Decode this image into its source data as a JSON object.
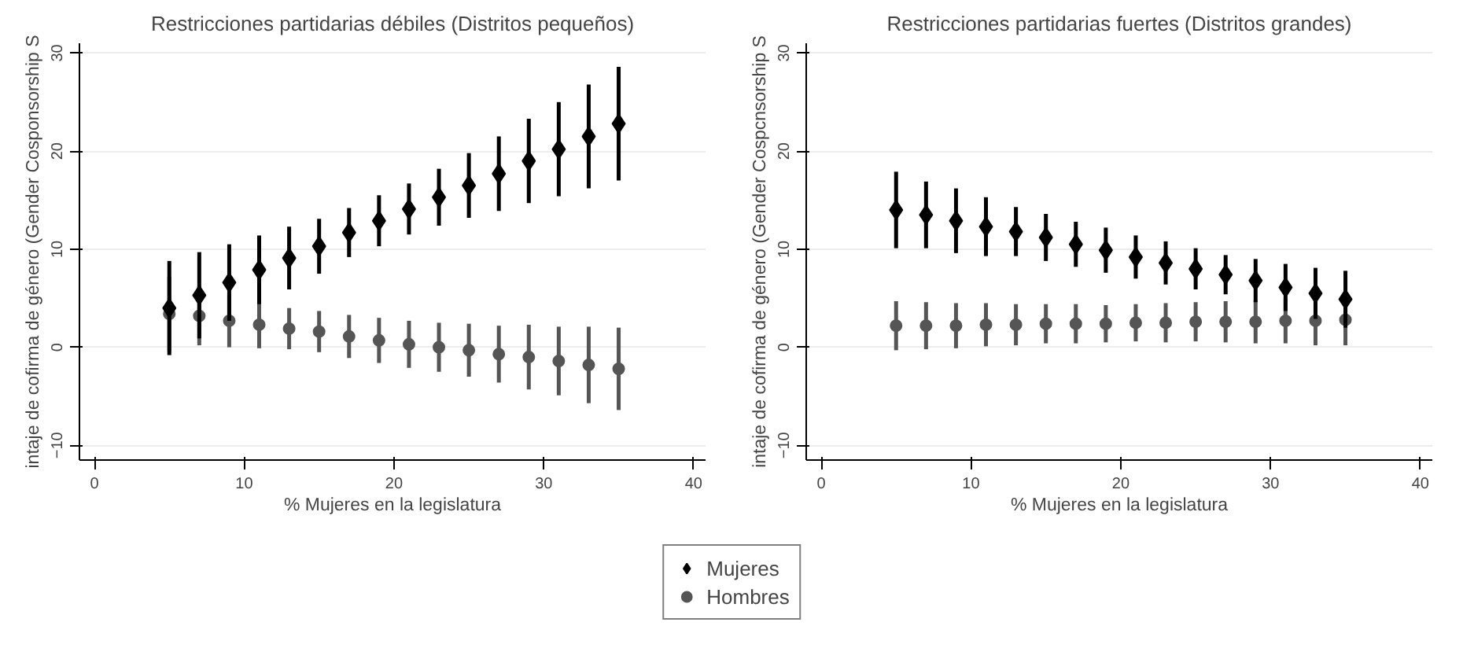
{
  "chart_data": [
    {
      "type": "scatter",
      "title": "Restricciones partidarias débiles (Distritos pequeños)",
      "xlabel": "% Mujeres en la legislatura",
      "ylabel": "intaje de cofirma de género (Gender Cosponsorship S",
      "xlim": [
        -1,
        40.8
      ],
      "ylim": [
        -11.5,
        31
      ],
      "xticks": [
        0,
        10,
        20,
        30,
        40
      ],
      "yticks": [
        -10,
        0,
        10,
        20,
        30
      ],
      "grid": "y",
      "legend": "bottom",
      "x": [
        5,
        7,
        9,
        11,
        13,
        15,
        17,
        19,
        21,
        23,
        25,
        27,
        29,
        31,
        33,
        35
      ],
      "series": [
        {
          "name": "Mujeres",
          "color": "#000000",
          "marker": "diamond",
          "values": [
            4.0,
            5.3,
            6.6,
            7.9,
            9.1,
            10.3,
            11.7,
            12.9,
            14.1,
            15.3,
            16.5,
            17.7,
            19.0,
            20.2,
            21.5,
            22.8
          ],
          "errors": [
            4.8,
            4.4,
            3.9,
            3.5,
            3.2,
            2.8,
            2.5,
            2.6,
            2.6,
            2.9,
            3.3,
            3.8,
            4.3,
            4.8,
            5.3,
            5.8
          ]
        },
        {
          "name": "Hombres",
          "color": "#555555",
          "marker": "circle",
          "values": [
            3.4,
            3.2,
            2.7,
            2.3,
            1.9,
            1.6,
            1.1,
            0.7,
            0.3,
            0.0,
            -0.3,
            -0.7,
            -1.0,
            -1.4,
            -1.8,
            -2.2
          ],
          "errors": [
            3.8,
            3.0,
            2.7,
            2.4,
            2.1,
            2.1,
            2.2,
            2.3,
            2.4,
            2.5,
            2.7,
            2.9,
            3.3,
            3.5,
            3.9,
            4.2
          ]
        }
      ]
    },
    {
      "type": "scatter",
      "title": "Restricciones partidarias fuertes (Distritos grandes)",
      "xlabel": "% Mujeres en la legislatura",
      "ylabel": "intaje de cofirma de género (Gender Cospcnsorship S",
      "xlim": [
        -1,
        40.8
      ],
      "ylim": [
        -11.5,
        31
      ],
      "xticks": [
        0,
        10,
        20,
        30,
        40
      ],
      "yticks": [
        -10,
        0,
        10,
        20,
        30
      ],
      "grid": "y",
      "x": [
        5,
        7,
        9,
        11,
        13,
        15,
        17,
        19,
        21,
        23,
        25,
        27,
        29,
        31,
        33,
        35
      ],
      "series": [
        {
          "color": "#000000",
          "marker": "diamond",
          "values": [
            14.0,
            13.5,
            12.9,
            12.3,
            11.8,
            11.2,
            10.5,
            9.9,
            9.2,
            8.6,
            8.0,
            7.4,
            6.8,
            6.1,
            5.5,
            4.9
          ],
          "errors": [
            3.9,
            3.4,
            3.3,
            3.0,
            2.5,
            2.4,
            2.3,
            2.3,
            2.2,
            2.2,
            2.1,
            2.0,
            2.2,
            2.4,
            2.6,
            2.9
          ]
        },
        {
          "color": "#555555",
          "marker": "circle",
          "values": [
            2.2,
            2.2,
            2.2,
            2.3,
            2.3,
            2.4,
            2.4,
            2.4,
            2.5,
            2.5,
            2.6,
            2.6,
            2.6,
            2.7,
            2.7,
            2.8
          ],
          "errors": [
            2.5,
            2.4,
            2.3,
            2.2,
            2.1,
            2.0,
            2.0,
            1.9,
            1.9,
            2.0,
            2.0,
            2.1,
            2.2,
            2.3,
            2.5,
            2.6
          ]
        }
      ]
    }
  ]
}
